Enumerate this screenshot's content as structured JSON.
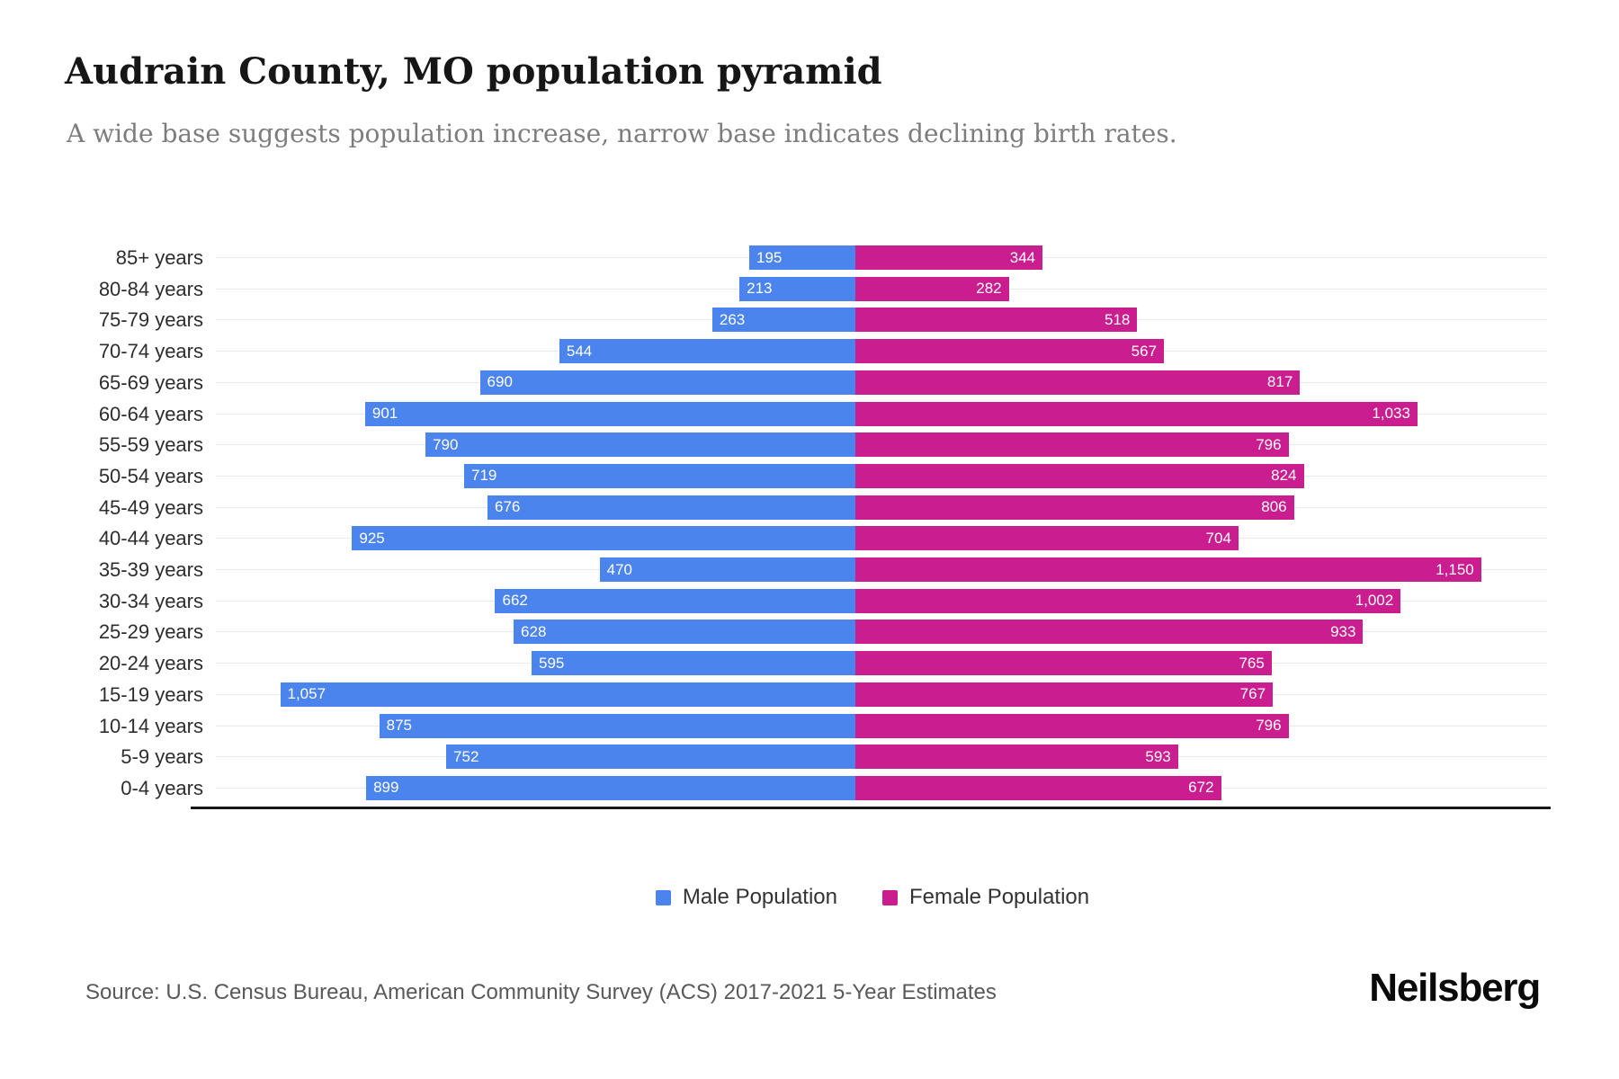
{
  "header": {
    "title": "Audrain County, MO population pyramid",
    "subtitle": "A wide base suggests population increase, narrow base indicates declining birth rates."
  },
  "chart_data": {
    "type": "bar",
    "variant": "population-pyramid",
    "title": "Audrain County, MO population pyramid",
    "subtitle": "A wide base suggests population increase, narrow base indicates declining birth rates.",
    "categories": [
      "85+ years",
      "80-84 years",
      "75-79 years",
      "70-74 years",
      "65-69 years",
      "60-64 years",
      "55-59 years",
      "50-54 years",
      "45-49 years",
      "40-44 years",
      "35-39 years",
      "30-34 years",
      "25-29 years",
      "20-24 years",
      "15-19 years",
      "10-14 years",
      "5-9 years",
      "0-4 years"
    ],
    "series": [
      {
        "name": "Male Population",
        "side": "left",
        "color": "#4A84EC",
        "values": [
          195,
          213,
          263,
          544,
          690,
          901,
          790,
          719,
          676,
          925,
          470,
          662,
          628,
          595,
          1057,
          875,
          752,
          899
        ]
      },
      {
        "name": "Female Population",
        "side": "right",
        "color": "#C91D90",
        "values": [
          344,
          282,
          518,
          567,
          817,
          1033,
          796,
          824,
          806,
          704,
          1150,
          1002,
          933,
          765,
          767,
          796,
          593,
          672
        ]
      }
    ],
    "value_labels": "inside-bar-ends",
    "grid": "horizontal-category-lines",
    "legend_position": "bottom",
    "xlabel": "",
    "ylabel": ""
  },
  "legend": {
    "male_label": "Male Population",
    "female_label": "Female Population"
  },
  "colors": {
    "male": "#4A84EC",
    "female": "#C91D90",
    "axis_line": "#15171c",
    "grid_line": "#e9e9e9",
    "subtitle_text": "#7d7d7d"
  },
  "footer": {
    "source": "Source: U.S. Census Bureau, American Community Survey (ACS) 2017-2021 5-Year Estimates",
    "logo": "Neilsberg"
  }
}
